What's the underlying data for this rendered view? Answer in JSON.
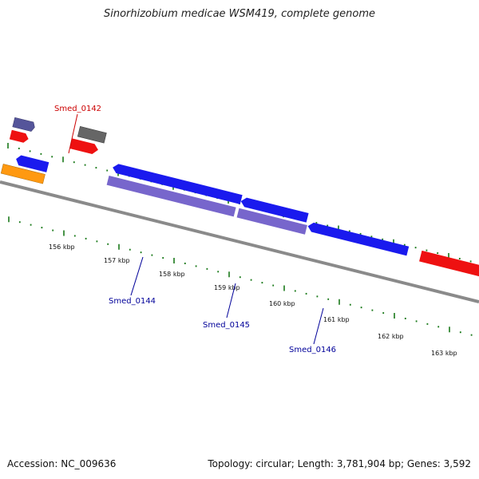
{
  "title": "Sinorhizobium medicae WSM419, complete genome",
  "footer": {
    "accession": "Accession: NC_009636",
    "summary": "Topology: circular; Length: 3,781,904 bp; Genes: 3,592"
  },
  "colors": {
    "backbone": "#8a8a8a",
    "tick": "#1a7a1a",
    "forward_red": "#ee1111",
    "reverse_blue": "#1a1aee",
    "lavender": "#7766cc",
    "slate": "#55559a",
    "grey": "#666666",
    "orange": "#ff9911",
    "label_red": "#cc0000",
    "label_blue": "#000099"
  },
  "scale_labels": [
    "156 kbp",
    "157 kbp",
    "158 kbp",
    "159 kbp",
    "160 kbp",
    "161 kbp",
    "162 kbp",
    "163 kbp"
  ],
  "gene_labels": [
    {
      "id": "smed-0142",
      "text": "Smed_0142",
      "color": "red"
    },
    {
      "id": "smed-0144",
      "text": "Smed_0144",
      "color": "blue"
    },
    {
      "id": "smed-0145",
      "text": "Smed_0145",
      "color": "blue"
    },
    {
      "id": "smed-0146",
      "text": "Smed_0146",
      "color": "blue"
    }
  ]
}
